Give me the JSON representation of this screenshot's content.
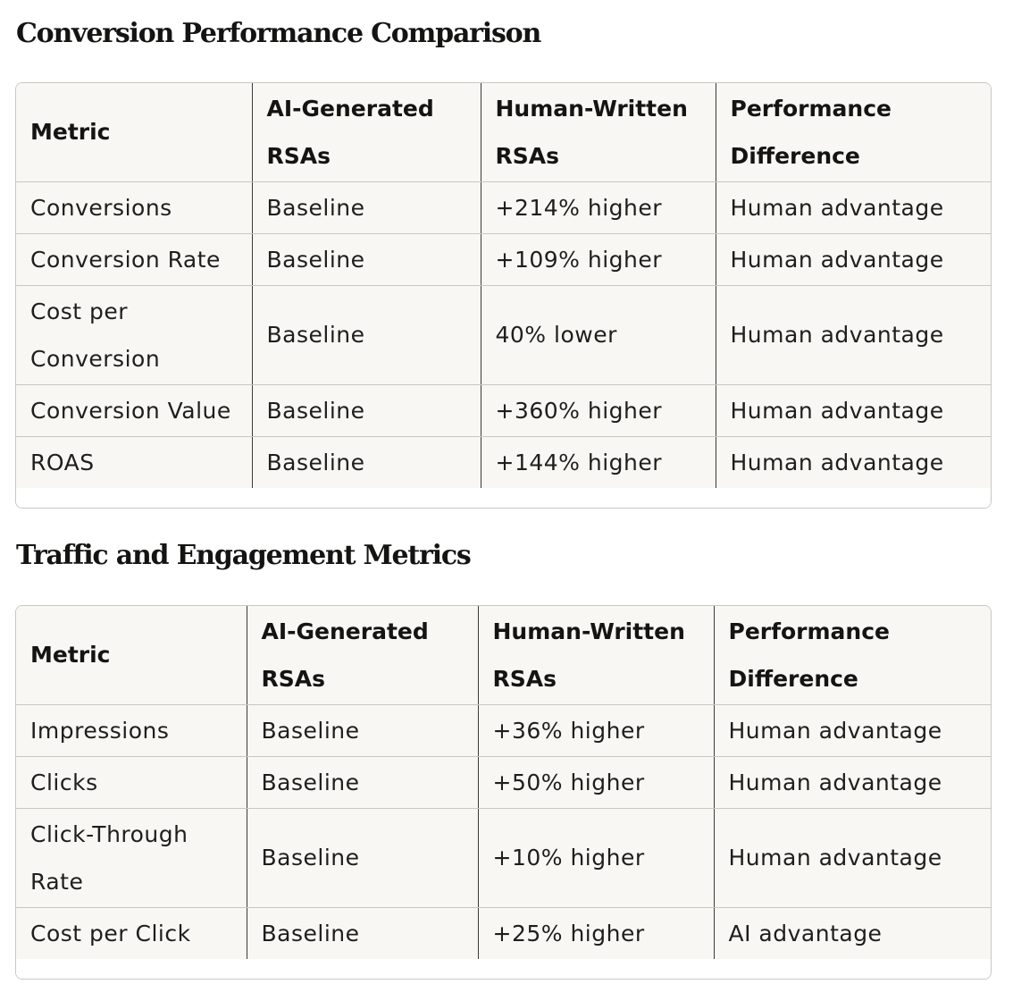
{
  "sections": [
    {
      "title": "Conversion Performance Comparison",
      "headers": [
        "Metric",
        "AI-Generated RSAs",
        "Human-Written RSAs",
        "Performance Difference"
      ],
      "rows": [
        [
          "Conversions",
          "Baseline",
          "+214% higher",
          "Human advantage"
        ],
        [
          "Conversion Rate",
          "Baseline",
          "+109% higher",
          "Human advantage"
        ],
        [
          "Cost per Conversion",
          "Baseline",
          "40% lower",
          "Human advantage"
        ],
        [
          "Conversion Value",
          "Baseline",
          "+360% higher",
          "Human advantage"
        ],
        [
          "ROAS",
          "Baseline",
          "+144% higher",
          "Human advantage"
        ]
      ]
    },
    {
      "title": "Traffic and Engagement Metrics",
      "headers": [
        "Metric",
        "AI-Generated RSAs",
        "Human-Written RSAs",
        "Performance Difference"
      ],
      "rows": [
        [
          "Impressions",
          "Baseline",
          "+36% higher",
          "Human advantage"
        ],
        [
          "Clicks",
          "Baseline",
          "+50% higher",
          "Human advantage"
        ],
        [
          "Click-Through Rate",
          "Baseline",
          "+10% higher",
          "Human advantage"
        ],
        [
          "Cost per Click",
          "Baseline",
          "+25% higher",
          "AI advantage"
        ]
      ]
    }
  ]
}
